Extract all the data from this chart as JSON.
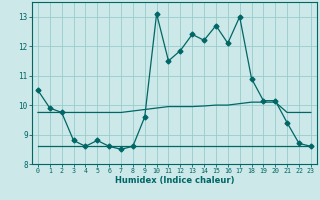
{
  "xlabel": "Humidex (Indice chaleur)",
  "bg_color": "#cce8e8",
  "grid_color": "#99cccc",
  "line_color": "#006666",
  "x_main": [
    0,
    1,
    2,
    3,
    4,
    5,
    6,
    7,
    8,
    9,
    10,
    11,
    12,
    13,
    14,
    15,
    16,
    17,
    18,
    19,
    20,
    21,
    22,
    23
  ],
  "y_main": [
    10.5,
    9.9,
    9.75,
    8.8,
    8.6,
    8.8,
    8.6,
    8.5,
    8.6,
    9.6,
    13.1,
    11.5,
    11.85,
    12.4,
    12.2,
    12.7,
    12.1,
    13.0,
    10.9,
    10.15,
    10.15,
    9.4,
    8.7,
    8.6
  ],
  "x_upper": [
    0,
    1,
    2,
    3,
    4,
    5,
    6,
    7,
    8,
    9,
    10,
    11,
    12,
    13,
    14,
    15,
    16,
    17,
    18,
    19,
    20,
    21,
    22,
    23
  ],
  "y_upper": [
    9.75,
    9.75,
    9.75,
    9.75,
    9.75,
    9.75,
    9.75,
    9.75,
    9.8,
    9.85,
    9.9,
    9.95,
    9.95,
    9.95,
    9.97,
    10.0,
    10.0,
    10.05,
    10.1,
    10.1,
    10.1,
    9.75,
    9.75,
    9.75
  ],
  "x_lower": [
    0,
    1,
    2,
    3,
    4,
    5,
    6,
    7,
    8,
    9,
    10,
    11,
    12,
    13,
    14,
    15,
    16,
    17,
    18,
    19,
    20,
    21,
    22,
    23
  ],
  "y_lower": [
    8.6,
    8.6,
    8.6,
    8.6,
    8.6,
    8.6,
    8.6,
    8.6,
    8.6,
    8.6,
    8.6,
    8.6,
    8.6,
    8.6,
    8.6,
    8.6,
    8.6,
    8.6,
    8.6,
    8.6,
    8.6,
    8.6,
    8.6,
    8.6
  ],
  "ylim": [
    8.0,
    13.5
  ],
  "yticks": [
    8,
    9,
    10,
    11,
    12,
    13
  ],
  "xticks": [
    0,
    1,
    2,
    3,
    4,
    5,
    6,
    7,
    8,
    9,
    10,
    11,
    12,
    13,
    14,
    15,
    16,
    17,
    18,
    19,
    20,
    21,
    22,
    23
  ],
  "marker": "D",
  "marker_size": 2.5
}
